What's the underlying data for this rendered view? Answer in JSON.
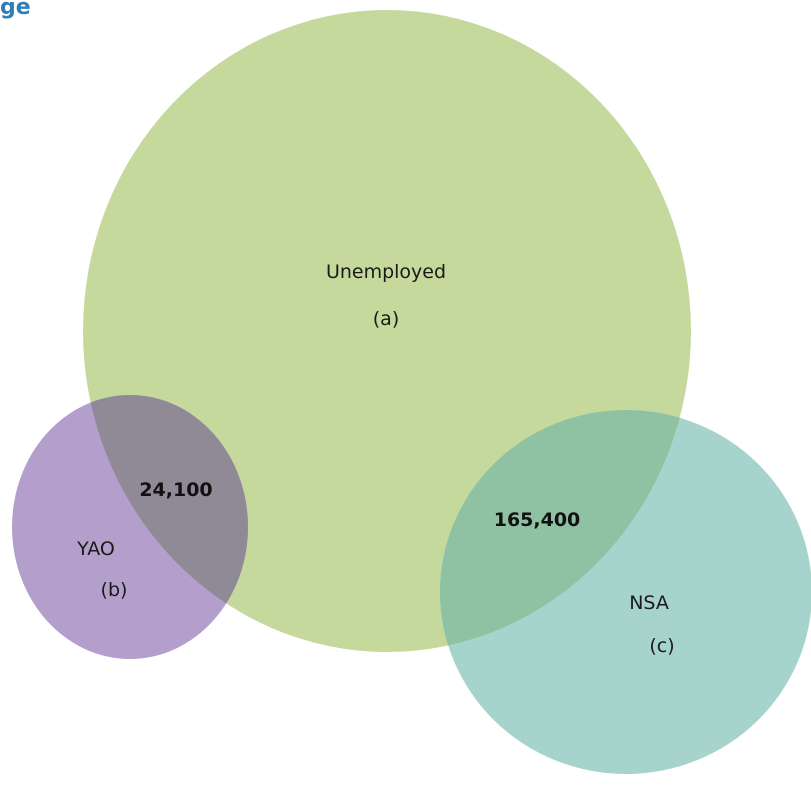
{
  "header": {
    "partial_title": "ge"
  },
  "sets": {
    "unemployed": {
      "name": "Unemployed",
      "tag": "(a)",
      "color": "#c5d99c"
    },
    "yao": {
      "name": "YAO",
      "tag": "(b)",
      "color": "#b49fcc"
    },
    "nsa": {
      "name": "NSA",
      "tag": "(c)",
      "color": "#a6d4cc"
    }
  },
  "overlaps": {
    "unemployed_yao": "24,100",
    "unemployed_nsa": "165,400"
  },
  "colors": {
    "overlap_yao": "#908a96",
    "overlap_nsa": "#8fc2a2",
    "heading": "#2f7fb8"
  }
}
